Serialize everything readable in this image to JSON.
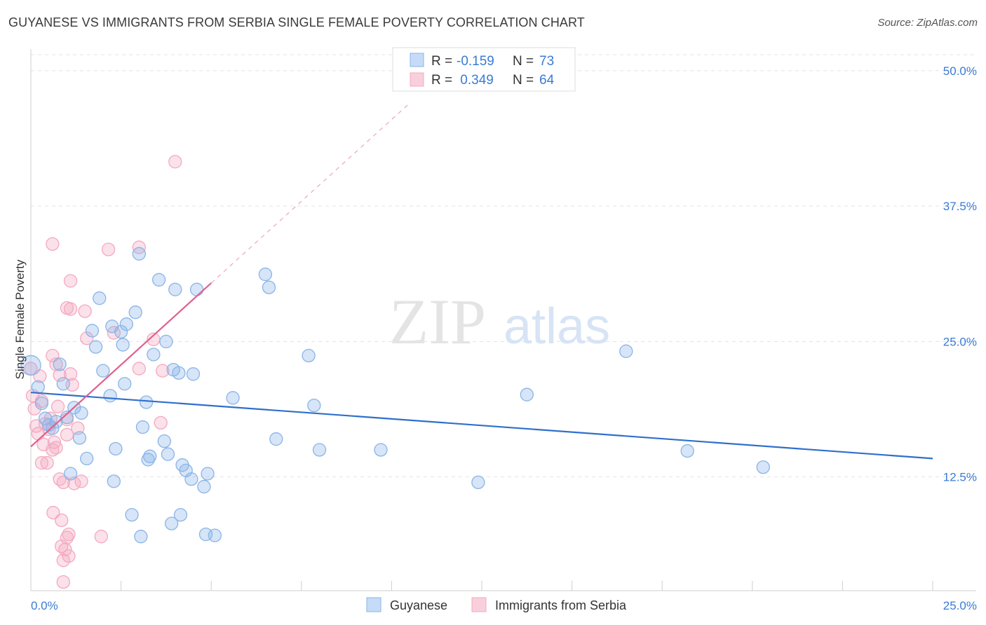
{
  "title": "GUYANESE VS IMMIGRANTS FROM SERBIA SINGLE FEMALE POVERTY CORRELATION CHART",
  "source": "Source: ZipAtlas.com",
  "watermark": {
    "zip": "ZIP",
    "atlas": "atlas"
  },
  "legend": {
    "rows": [
      {
        "r_label": "R =",
        "r_value": "-0.159",
        "n_label": "N =",
        "n_value": "73"
      },
      {
        "r_label": "R =",
        "r_value": " 0.349",
        "n_label": "N =",
        "n_value": "64"
      }
    ]
  },
  "chart_data": {
    "type": "scatter",
    "title": "GUYANESE VS IMMIGRANTS FROM SERBIA SINGLE FEMALE POVERTY CORRELATION CHART",
    "xlabel": "",
    "ylabel": "Single Female Poverty",
    "xlim": [
      0,
      25
    ],
    "ylim": [
      2,
      52
    ],
    "x_tick_labels": [
      "0.0%",
      "25.0%"
    ],
    "y_ticks": [
      12.5,
      25.0,
      37.5,
      50.0
    ],
    "y_tick_labels": [
      "12.5%",
      "25.0%",
      "37.5%",
      "50.0%"
    ],
    "grid": true,
    "legend_position": "top-center",
    "series": [
      {
        "name": "Guyanese",
        "color": "#8ab4e8",
        "trend_color": "#2f6fcc",
        "trend": {
          "x": [
            0,
            25
          ],
          "y": [
            20.3,
            14.2
          ]
        },
        "points": [
          [
            0.0,
            22.8
          ],
          [
            0.2,
            20.8
          ],
          [
            0.3,
            19.3
          ],
          [
            0.4,
            17.9
          ],
          [
            0.5,
            17.3
          ],
          [
            0.6,
            17.0
          ],
          [
            0.7,
            17.6
          ],
          [
            0.8,
            22.9
          ],
          [
            0.9,
            21.1
          ],
          [
            1.0,
            18.0
          ],
          [
            1.1,
            12.8
          ],
          [
            1.2,
            18.9
          ],
          [
            1.35,
            16.1
          ],
          [
            1.4,
            18.4
          ],
          [
            1.55,
            14.2
          ],
          [
            1.7,
            26.0
          ],
          [
            1.8,
            24.5
          ],
          [
            1.9,
            29.0
          ],
          [
            2.0,
            22.3
          ],
          [
            2.2,
            20.0
          ],
          [
            2.25,
            26.4
          ],
          [
            2.3,
            12.1
          ],
          [
            2.35,
            15.1
          ],
          [
            2.5,
            25.9
          ],
          [
            2.55,
            24.7
          ],
          [
            2.6,
            21.1
          ],
          [
            2.65,
            26.6
          ],
          [
            2.8,
            9.0
          ],
          [
            2.9,
            27.7
          ],
          [
            3.0,
            33.1
          ],
          [
            3.05,
            7.0
          ],
          [
            3.1,
            17.1
          ],
          [
            3.2,
            19.4
          ],
          [
            3.25,
            14.1
          ],
          [
            3.3,
            14.4
          ],
          [
            3.4,
            23.8
          ],
          [
            3.55,
            30.7
          ],
          [
            3.7,
            15.8
          ],
          [
            3.75,
            25.0
          ],
          [
            3.8,
            14.6
          ],
          [
            3.9,
            8.2
          ],
          [
            3.95,
            22.4
          ],
          [
            4.0,
            29.8
          ],
          [
            4.1,
            22.1
          ],
          [
            4.15,
            9.0
          ],
          [
            4.2,
            13.6
          ],
          [
            4.3,
            13.1
          ],
          [
            4.45,
            12.3
          ],
          [
            4.5,
            22.0
          ],
          [
            4.6,
            29.8
          ],
          [
            4.8,
            11.6
          ],
          [
            4.85,
            7.2
          ],
          [
            4.9,
            12.8
          ],
          [
            5.1,
            7.1
          ],
          [
            5.6,
            19.8
          ],
          [
            6.5,
            31.2
          ],
          [
            6.6,
            30.0
          ],
          [
            6.8,
            16.0
          ],
          [
            7.7,
            23.7
          ],
          [
            7.85,
            19.1
          ],
          [
            8.0,
            15.0
          ],
          [
            9.7,
            15.0
          ],
          [
            12.4,
            12.0
          ],
          [
            13.75,
            20.1
          ],
          [
            16.5,
            24.1
          ],
          [
            18.2,
            14.9
          ],
          [
            20.3,
            13.4
          ]
        ]
      },
      {
        "name": "Immigrants from Serbia",
        "color": "#f4a8c0",
        "trend_color": "#e0608f",
        "trend": {
          "x": [
            0,
            5.0
          ],
          "y": [
            15.3,
            30.4
          ]
        },
        "trend_extension": {
          "x": [
            5.0,
            10.5
          ],
          "y": [
            30.4,
            47.0
          ]
        },
        "points": [
          [
            0.0,
            22.5
          ],
          [
            0.05,
            20.0
          ],
          [
            0.1,
            18.8
          ],
          [
            0.15,
            17.2
          ],
          [
            0.2,
            16.5
          ],
          [
            0.25,
            21.8
          ],
          [
            0.3,
            19.5
          ],
          [
            0.3,
            13.8
          ],
          [
            0.35,
            15.5
          ],
          [
            0.4,
            17.4
          ],
          [
            0.45,
            13.8
          ],
          [
            0.5,
            16.9
          ],
          [
            0.55,
            17.9
          ],
          [
            0.6,
            23.7
          ],
          [
            0.6,
            15.0
          ],
          [
            0.65,
            15.7
          ],
          [
            0.6,
            34.0
          ],
          [
            0.62,
            9.2
          ],
          [
            0.7,
            22.9
          ],
          [
            0.7,
            15.2
          ],
          [
            0.75,
            19.0
          ],
          [
            0.8,
            21.9
          ],
          [
            0.8,
            12.3
          ],
          [
            0.85,
            8.5
          ],
          [
            0.85,
            6.1
          ],
          [
            0.9,
            12.0
          ],
          [
            0.9,
            4.8
          ],
          [
            0.9,
            2.8
          ],
          [
            0.95,
            5.8
          ],
          [
            1.0,
            28.1
          ],
          [
            1.0,
            16.4
          ],
          [
            1.0,
            17.8
          ],
          [
            1.0,
            6.9
          ],
          [
            1.05,
            7.2
          ],
          [
            1.05,
            5.2
          ],
          [
            1.1,
            30.6
          ],
          [
            1.1,
            28.0
          ],
          [
            1.1,
            22.0
          ],
          [
            1.15,
            21.0
          ],
          [
            1.2,
            11.9
          ],
          [
            1.3,
            17.0
          ],
          [
            1.4,
            12.1
          ],
          [
            1.5,
            27.8
          ],
          [
            1.55,
            25.3
          ],
          [
            1.95,
            7.0
          ],
          [
            2.15,
            33.5
          ],
          [
            2.3,
            25.8
          ],
          [
            3.0,
            33.7
          ],
          [
            3.0,
            22.5
          ],
          [
            3.4,
            25.2
          ],
          [
            3.6,
            17.5
          ],
          [
            3.65,
            22.3
          ],
          [
            4.0,
            41.6
          ]
        ]
      }
    ]
  }
}
